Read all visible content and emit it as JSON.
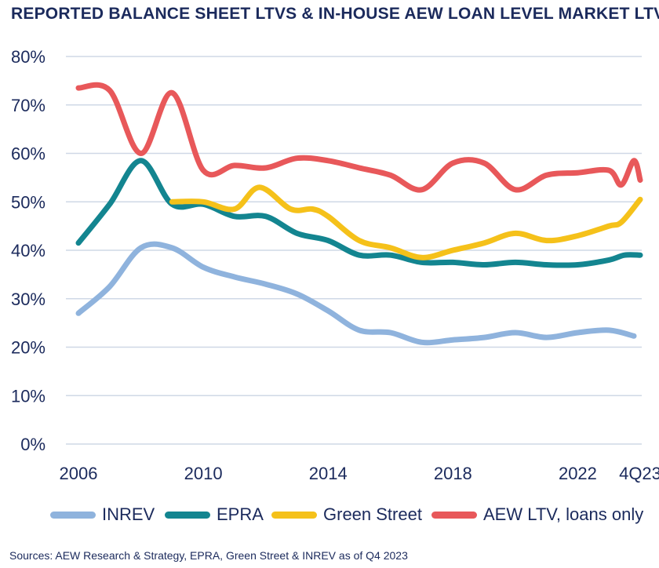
{
  "chart_data": {
    "type": "line",
    "title": "REPORTED BALANCE SHEET LTVS & IN-HOUSE AEW LOAN LEVEL MARKET LTVS",
    "yticks": [
      "80%",
      "70%",
      "60%",
      "50%",
      "40%",
      "30%",
      "20%",
      "10%",
      "0%"
    ],
    "ylim": [
      0,
      80
    ],
    "xlim": [
      2006,
      2024
    ],
    "xticks": [
      {
        "x": 2006,
        "label": "2006"
      },
      {
        "x": 2010,
        "label": "2010"
      },
      {
        "x": 2014,
        "label": "2014"
      },
      {
        "x": 2018,
        "label": "2018"
      },
      {
        "x": 2022,
        "label": "2022"
      },
      {
        "x": 2024,
        "label": "4Q23"
      }
    ],
    "grid": true,
    "legend_position": "bottom",
    "series": [
      {
        "name": "INREV",
        "color": "#8fb3dd",
        "points": [
          [
            2006,
            27
          ],
          [
            2007,
            32.5
          ],
          [
            2008,
            40.5
          ],
          [
            2009,
            40.5
          ],
          [
            2010,
            36.5
          ],
          [
            2011,
            34.5
          ],
          [
            2012,
            33
          ],
          [
            2013,
            31
          ],
          [
            2014,
            27.5
          ],
          [
            2015,
            23.5
          ],
          [
            2016,
            23
          ],
          [
            2017,
            21
          ],
          [
            2018,
            21.5
          ],
          [
            2019,
            22
          ],
          [
            2020,
            23
          ],
          [
            2021,
            22
          ],
          [
            2022,
            23
          ],
          [
            2023,
            23.5
          ],
          [
            2023.8,
            22.3
          ]
        ]
      },
      {
        "name": "EPRA",
        "color": "#138590",
        "points": [
          [
            2006,
            41.5
          ],
          [
            2007,
            49.5
          ],
          [
            2008,
            58.5
          ],
          [
            2009,
            49.5
          ],
          [
            2010,
            49.5
          ],
          [
            2011,
            47
          ],
          [
            2012,
            47
          ],
          [
            2013,
            43.5
          ],
          [
            2014,
            42
          ],
          [
            2015,
            39
          ],
          [
            2016,
            39
          ],
          [
            2017,
            37.5
          ],
          [
            2018,
            37.5
          ],
          [
            2019,
            37
          ],
          [
            2020,
            37.5
          ],
          [
            2021,
            37
          ],
          [
            2022,
            37
          ],
          [
            2023,
            38
          ],
          [
            2023.5,
            39
          ],
          [
            2024,
            39
          ]
        ]
      },
      {
        "name": "Green Street",
        "color": "#f5c11a",
        "points": [
          [
            2009,
            50
          ],
          [
            2010,
            50
          ],
          [
            2011,
            48.5
          ],
          [
            2011.8,
            53
          ],
          [
            2012.8,
            48.5
          ],
          [
            2013.5,
            48.5
          ],
          [
            2014,
            47
          ],
          [
            2015,
            42
          ],
          [
            2016,
            40.5
          ],
          [
            2017,
            38.5
          ],
          [
            2018,
            40
          ],
          [
            2019,
            41.5
          ],
          [
            2020,
            43.5
          ],
          [
            2021,
            42
          ],
          [
            2022,
            43
          ],
          [
            2023,
            45
          ],
          [
            2023.4,
            45.8
          ],
          [
            2024,
            50.5
          ]
        ]
      },
      {
        "name": "AEW LTV, loans only",
        "color": "#e8585a",
        "points": [
          [
            2006,
            73.5
          ],
          [
            2007,
            73
          ],
          [
            2008,
            60
          ],
          [
            2009,
            72.5
          ],
          [
            2010,
            56.5
          ],
          [
            2011,
            57.5
          ],
          [
            2012,
            57
          ],
          [
            2013,
            59
          ],
          [
            2014,
            58.5
          ],
          [
            2015,
            57
          ],
          [
            2016,
            55.5
          ],
          [
            2017,
            52.5
          ],
          [
            2018,
            58
          ],
          [
            2019,
            58
          ],
          [
            2020,
            52.5
          ],
          [
            2021,
            55.5
          ],
          [
            2022,
            56
          ],
          [
            2023,
            56.5
          ],
          [
            2023.4,
            53.5
          ],
          [
            2023.8,
            58.5
          ],
          [
            2024,
            54.5
          ]
        ]
      }
    ]
  },
  "legend": [
    {
      "label": "INREV",
      "color": "#8fb3dd"
    },
    {
      "label": "EPRA",
      "color": "#138590"
    },
    {
      "label": "Green Street",
      "color": "#f5c11a"
    },
    {
      "label": "AEW LTV, loans only",
      "color": "#e8585a"
    }
  ],
  "source": "Sources: AEW Research & Strategy, EPRA, Green Street & INREV as of Q4 2023"
}
